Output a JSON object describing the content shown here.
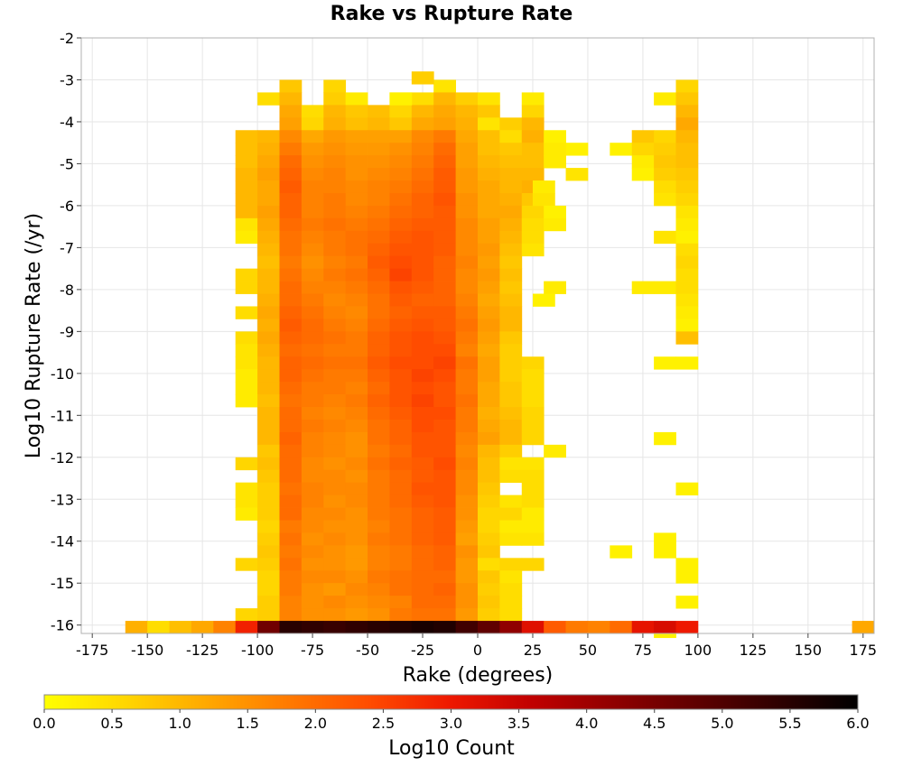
{
  "chart_data": {
    "type": "heatmap",
    "title": "Rake vs Rupture Rate",
    "xlabel": "Rake (degrees)",
    "ylabel": "Log10 Rupture Rate (/yr)",
    "xlim": [
      -180,
      180
    ],
    "ylim": [
      -16.2,
      -2
    ],
    "x_ticks": [
      -175,
      -150,
      -125,
      -100,
      -75,
      -50,
      -25,
      0,
      25,
      50,
      75,
      100,
      125,
      150,
      175
    ],
    "y_ticks": [
      -2,
      -3,
      -4,
      -5,
      -6,
      -7,
      -8,
      -9,
      -10,
      -11,
      -12,
      -13,
      -14,
      -15,
      -16
    ],
    "grid": true,
    "bin_width_x": 10,
    "bin_height_y": 0.3,
    "colorbar": {
      "label": "Log10 Count",
      "range": [
        0,
        6
      ],
      "ticks": [
        "0.0",
        "0.5",
        "1.0",
        "1.5",
        "2.0",
        "2.5",
        "3.0",
        "3.5",
        "4.0",
        "4.5",
        "5.0",
        "5.5",
        "6.0"
      ],
      "stops": [
        "#ffff00",
        "#ffd600",
        "#ffa800",
        "#ff7a00",
        "#ff4c00",
        "#ee1800",
        "#c00000",
        "#900000",
        "#600000",
        "#300000",
        "#000000"
      ]
    },
    "x_centers": [
      -105,
      -95,
      -85,
      -75,
      -65,
      -55,
      -45,
      -35,
      -25,
      -15,
      -5,
      5,
      15,
      25
    ],
    "y_rows_top": [
      -3.0,
      -3.3,
      -3.6,
      -3.9,
      -4.2,
      -4.5,
      -4.8,
      -5.1,
      -5.4,
      -5.7,
      -6.0,
      -6.3,
      -6.6,
      -6.9,
      -7.2,
      -7.5,
      -7.8,
      -8.1,
      -8.4,
      -8.7,
      -9.0,
      -9.3,
      -9.6,
      -9.9,
      -10.2,
      -10.5,
      -10.8,
      -11.1,
      -11.4,
      -11.7,
      -12.0,
      -12.3,
      -12.6,
      -12.9,
      -13.2,
      -13.5,
      -13.8,
      -14.1,
      -14.4,
      -14.7,
      -15.0,
      -15.3,
      -15.6,
      -15.9
    ],
    "grid_values": [
      [
        null,
        null,
        0.8,
        null,
        0.6,
        null,
        null,
        null,
        null,
        0.4,
        null,
        null,
        null,
        null
      ],
      [
        null,
        0.5,
        1.0,
        null,
        0.7,
        0.3,
        null,
        0.3,
        0.5,
        1.0,
        0.7,
        0.4,
        null,
        0.3
      ],
      [
        null,
        null,
        1.2,
        0.5,
        1.0,
        0.8,
        0.9,
        0.6,
        1.0,
        1.2,
        1.0,
        0.8,
        null,
        0.6
      ],
      [
        null,
        null,
        1.3,
        0.6,
        1.1,
        0.9,
        1.0,
        0.8,
        1.2,
        1.3,
        1.1,
        0.4,
        0.7,
        1.0
      ],
      [
        0.9,
        1.0,
        1.6,
        1.2,
        1.4,
        1.3,
        1.3,
        1.3,
        1.6,
        1.8,
        1.2,
        0.9,
        0.5,
        1.1
      ],
      [
        0.9,
        1.1,
        1.8,
        1.4,
        1.5,
        1.4,
        1.4,
        1.5,
        1.7,
        2.0,
        1.3,
        0.9,
        0.8,
        0.9
      ],
      [
        0.9,
        1.2,
        2.0,
        1.5,
        1.6,
        1.5,
        1.5,
        1.6,
        1.8,
        2.1,
        1.3,
        1.0,
        0.9,
        0.9
      ],
      [
        1.0,
        1.3,
        2.1,
        1.6,
        1.7,
        1.5,
        1.6,
        1.7,
        1.9,
        2.2,
        1.4,
        1.1,
        1.0,
        1.0
      ],
      [
        1.0,
        1.2,
        2.2,
        1.7,
        1.7,
        1.6,
        1.7,
        1.8,
        2.0,
        2.2,
        1.4,
        1.2,
        1.0,
        1.1
      ],
      [
        1.0,
        1.2,
        2.1,
        1.7,
        1.8,
        1.6,
        1.7,
        1.9,
        2.1,
        2.3,
        1.5,
        1.2,
        1.1,
        0.8
      ],
      [
        1.0,
        1.3,
        2.1,
        1.7,
        1.8,
        1.7,
        1.8,
        2.0,
        2.1,
        2.2,
        1.5,
        1.2,
        1.2,
        0.6
      ],
      [
        0.4,
        1.2,
        2.0,
        1.8,
        1.9,
        1.8,
        1.9,
        2.1,
        2.2,
        2.2,
        1.6,
        1.3,
        1.1,
        0.5
      ],
      [
        0.3,
        1.1,
        1.9,
        1.7,
        1.8,
        1.9,
        2.0,
        2.2,
        2.3,
        2.2,
        1.6,
        1.3,
        1.0,
        0.5
      ],
      [
        null,
        1.0,
        1.9,
        1.6,
        1.8,
        1.9,
        2.1,
        2.3,
        2.3,
        2.2,
        1.6,
        1.4,
        0.9,
        0.4
      ],
      [
        null,
        0.9,
        1.8,
        1.5,
        1.7,
        1.8,
        2.2,
        2.4,
        2.3,
        2.1,
        1.7,
        1.3,
        0.8,
        null
      ],
      [
        0.6,
        1.0,
        1.9,
        1.6,
        1.8,
        1.9,
        2.1,
        2.5,
        2.3,
        2.1,
        1.6,
        1.4,
        0.9,
        null
      ],
      [
        0.6,
        1.0,
        2.0,
        1.7,
        1.7,
        1.8,
        2.0,
        2.3,
        2.2,
        2.1,
        1.6,
        1.3,
        0.8,
        null
      ],
      [
        null,
        1.1,
        2.0,
        1.8,
        1.6,
        1.7,
        1.9,
        2.2,
        2.1,
        2.1,
        1.7,
        1.2,
        0.9,
        null
      ],
      [
        0.5,
        1.2,
        2.1,
        1.9,
        1.7,
        1.6,
        1.9,
        2.1,
        2.2,
        2.2,
        1.8,
        1.3,
        1.0,
        null
      ],
      [
        null,
        1.1,
        2.2,
        2.0,
        1.8,
        1.7,
        2.0,
        2.2,
        2.3,
        2.2,
        1.9,
        1.4,
        1.0,
        null
      ],
      [
        0.5,
        1.2,
        2.1,
        2.0,
        1.9,
        1.8,
        2.1,
        2.3,
        2.4,
        2.3,
        1.8,
        1.3,
        0.8,
        null
      ],
      [
        0.4,
        1.1,
        2.0,
        1.9,
        1.8,
        1.8,
        2.1,
        2.3,
        2.4,
        2.4,
        1.7,
        1.2,
        0.7,
        null
      ],
      [
        0.4,
        1.0,
        2.1,
        2.0,
        1.9,
        1.9,
        2.2,
        2.4,
        2.4,
        2.5,
        1.9,
        1.3,
        0.7,
        0.6
      ],
      [
        0.3,
        1.0,
        2.1,
        1.9,
        1.8,
        1.8,
        2.1,
        2.3,
        2.5,
        2.4,
        1.8,
        1.3,
        0.7,
        0.5
      ],
      [
        0.3,
        1.0,
        2.0,
        1.8,
        1.8,
        1.7,
        2.0,
        2.3,
        2.4,
        2.3,
        1.8,
        1.2,
        0.8,
        0.5
      ],
      [
        0.3,
        0.9,
        1.9,
        1.8,
        1.7,
        1.8,
        2.1,
        2.3,
        2.5,
        2.3,
        1.9,
        1.2,
        0.8,
        0.5
      ],
      [
        null,
        1.0,
        2.0,
        1.7,
        1.6,
        1.7,
        2.0,
        2.2,
        2.4,
        2.4,
        1.8,
        1.1,
        0.9,
        0.6
      ],
      [
        null,
        1.0,
        2.0,
        1.8,
        1.7,
        1.6,
        1.9,
        2.1,
        2.4,
        2.3,
        1.8,
        1.2,
        1.0,
        0.6
      ],
      [
        null,
        1.0,
        2.1,
        1.7,
        1.6,
        1.5,
        1.9,
        2.1,
        2.3,
        2.3,
        1.7,
        1.3,
        1.0,
        0.6
      ],
      [
        null,
        0.8,
        2.0,
        1.7,
        1.6,
        1.5,
        1.8,
        2.0,
        2.3,
        2.3,
        1.6,
        1.0,
        0.7,
        null
      ],
      [
        0.6,
        0.9,
        2.0,
        1.6,
        1.5,
        1.6,
        1.9,
        2.1,
        2.2,
        2.4,
        1.7,
        0.9,
        0.4,
        0.4
      ],
      [
        null,
        0.8,
        2.0,
        1.6,
        1.6,
        1.5,
        1.8,
        2.0,
        2.2,
        2.3,
        1.6,
        0.9,
        0.5,
        0.5
      ],
      [
        0.4,
        0.7,
        1.9,
        1.7,
        1.6,
        1.6,
        1.8,
        2.0,
        2.3,
        2.3,
        1.6,
        0.8,
        null,
        0.5
      ],
      [
        0.4,
        0.7,
        2.0,
        1.7,
        1.5,
        1.6,
        1.8,
        2.0,
        2.2,
        2.3,
        1.5,
        0.7,
        0.4,
        0.5
      ],
      [
        0.3,
        0.7,
        2.0,
        1.6,
        1.6,
        1.5,
        1.8,
        1.9,
        2.1,
        2.2,
        1.5,
        0.6,
        0.6,
        0.3
      ],
      [
        null,
        0.6,
        1.8,
        1.6,
        1.5,
        1.5,
        1.7,
        1.9,
        2.1,
        2.2,
        1.4,
        0.6,
        0.3,
        0.3
      ],
      [
        null,
        0.7,
        1.9,
        1.5,
        1.6,
        1.5,
        1.8,
        1.9,
        2.1,
        2.2,
        1.3,
        0.7,
        0.4,
        0.4
      ],
      [
        null,
        0.8,
        1.8,
        1.6,
        1.5,
        1.4,
        1.7,
        1.8,
        2.0,
        2.1,
        1.5,
        0.8,
        null,
        null
      ],
      [
        0.6,
        0.7,
        1.9,
        1.5,
        1.5,
        1.4,
        1.7,
        1.8,
        2.0,
        2.1,
        1.4,
        0.5,
        0.6,
        0.6
      ],
      [
        null,
        0.6,
        1.8,
        1.6,
        1.6,
        1.5,
        1.8,
        1.9,
        2.0,
        2.0,
        1.4,
        0.8,
        0.4,
        null
      ],
      [
        null,
        0.6,
        1.8,
        1.5,
        1.4,
        1.6,
        1.7,
        1.9,
        2.0,
        2.1,
        1.5,
        0.7,
        0.5,
        null
      ],
      [
        null,
        0.7,
        1.7,
        1.5,
        1.6,
        1.5,
        1.6,
        1.7,
        2.0,
        2.0,
        1.5,
        0.8,
        0.5,
        null
      ],
      [
        0.6,
        0.7,
        1.7,
        1.5,
        1.5,
        1.4,
        1.5,
        1.8,
        1.9,
        1.9,
        1.4,
        0.7,
        0.5,
        null
      ],
      [
        null,
        0.6,
        1.8,
        1.5,
        1.6,
        1.4,
        1.6,
        1.8,
        2.1,
        2.0,
        1.5,
        0.5,
        0.6,
        0.4
      ]
    ],
    "extra_cells": [
      [
        -25,
        -2.8,
        0.7
      ],
      [
        -35,
        -3.3,
        0.2
      ],
      [
        35,
        -4.2,
        0.2
      ],
      [
        45,
        -4.5,
        0.2
      ],
      [
        35,
        -4.5,
        0.3
      ],
      [
        35,
        -4.8,
        0.3
      ],
      [
        45,
        -5.1,
        0.4
      ],
      [
        30,
        -5.4,
        0.3
      ],
      [
        30,
        -5.7,
        0.4
      ],
      [
        35,
        -6.0,
        0.2
      ],
      [
        35,
        -6.3,
        0.3
      ],
      [
        35,
        -7.8,
        0.3
      ],
      [
        30,
        -8.1,
        0.2
      ],
      [
        35,
        -11.7,
        0.3
      ],
      [
        65,
        -4.5,
        0.2
      ],
      [
        75,
        -4.2,
        0.8
      ],
      [
        75,
        -4.5,
        0.6
      ],
      [
        75,
        -4.8,
        0.3
      ],
      [
        75,
        -5.1,
        0.2
      ],
      [
        75,
        -7.8,
        0.3
      ],
      [
        65,
        -14.1,
        0.2
      ],
      [
        85,
        -3.3,
        0.3
      ],
      [
        85,
        -4.2,
        0.6
      ],
      [
        85,
        -4.5,
        0.7
      ],
      [
        85,
        -4.8,
        0.8
      ],
      [
        85,
        -5.1,
        0.7
      ],
      [
        85,
        -5.4,
        0.5
      ],
      [
        85,
        -5.7,
        0.4
      ],
      [
        85,
        -6.6,
        0.4
      ],
      [
        85,
        -7.8,
        0.3
      ],
      [
        85,
        -9.6,
        0.2
      ],
      [
        85,
        -11.4,
        0.2
      ],
      [
        85,
        -13.8,
        0.2
      ],
      [
        85,
        -14.1,
        0.2
      ],
      [
        85,
        -16.0,
        0.2
      ],
      [
        95,
        -3.0,
        0.6
      ],
      [
        95,
        -3.3,
        0.8
      ],
      [
        95,
        -3.6,
        1.0
      ],
      [
        95,
        -3.9,
        1.2
      ],
      [
        95,
        -4.2,
        1.0
      ],
      [
        95,
        -4.5,
        0.9
      ],
      [
        95,
        -4.8,
        0.9
      ],
      [
        95,
        -5.1,
        0.8
      ],
      [
        95,
        -5.4,
        0.7
      ],
      [
        95,
        -5.7,
        0.6
      ],
      [
        95,
        -6.0,
        0.4
      ],
      [
        95,
        -6.3,
        0.3
      ],
      [
        95,
        -6.6,
        0.2
      ],
      [
        95,
        -6.9,
        0.5
      ],
      [
        95,
        -7.2,
        0.6
      ],
      [
        95,
        -7.5,
        0.5
      ],
      [
        95,
        -7.8,
        0.5
      ],
      [
        95,
        -8.1,
        0.4
      ],
      [
        95,
        -8.4,
        0.3
      ],
      [
        95,
        -8.7,
        0.2
      ],
      [
        95,
        -9.0,
        0.9
      ],
      [
        95,
        -9.6,
        0.2
      ],
      [
        95,
        -12.6,
        0.2
      ],
      [
        95,
        -14.4,
        0.2
      ],
      [
        95,
        -14.7,
        0.2
      ],
      [
        95,
        -15.3,
        0.2
      ]
    ],
    "bottom_row": {
      "y_top": -15.9,
      "cells": [
        [
          -155,
          1.1
        ],
        [
          -145,
          0.5
        ],
        [
          -135,
          0.9
        ],
        [
          -125,
          1.2
        ],
        [
          -115,
          1.7
        ],
        [
          -105,
          2.9
        ],
        [
          -95,
          4.6
        ],
        [
          -85,
          5.5
        ],
        [
          -75,
          5.4
        ],
        [
          -65,
          5.3
        ],
        [
          -55,
          5.4
        ],
        [
          -45,
          5.5
        ],
        [
          -35,
          5.6
        ],
        [
          -25,
          5.7
        ],
        [
          -15,
          5.6
        ],
        [
          -5,
          5.2
        ],
        [
          5,
          4.8
        ],
        [
          15,
          4.2
        ],
        [
          25,
          3.2
        ],
        [
          35,
          2.2
        ],
        [
          45,
          1.8
        ],
        [
          55,
          1.7
        ],
        [
          65,
          2.0
        ],
        [
          75,
          3.1
        ],
        [
          85,
          3.3
        ],
        [
          95,
          3.0
        ],
        [
          175,
          1.2
        ]
      ]
    }
  }
}
